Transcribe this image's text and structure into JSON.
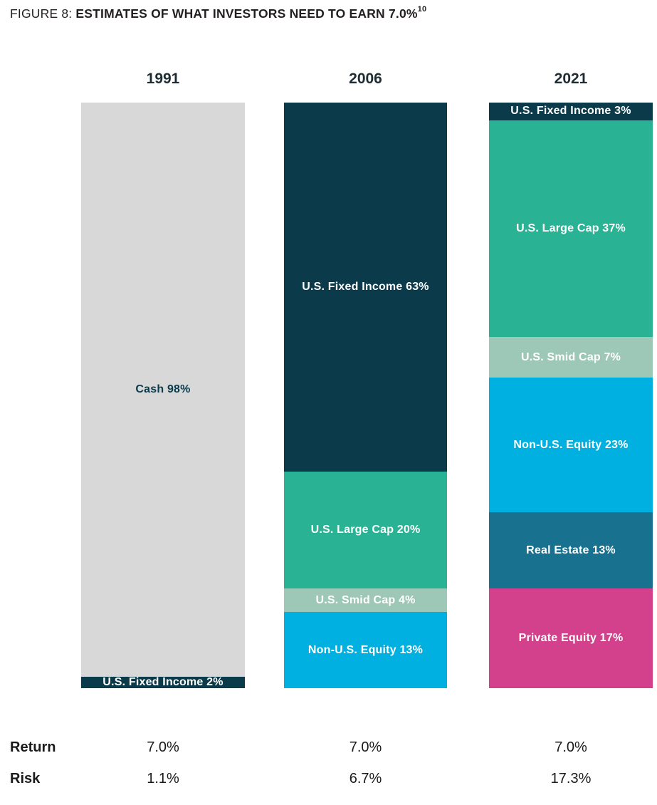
{
  "figure": {
    "prefix": "FIGURE 8:",
    "heading": "ESTIMATES OF WHAT INVESTORS NEED TO EARN 7.0%",
    "footnote_ref": "10"
  },
  "palette": {
    "navy": "#0b3a4b",
    "teal": "#2ab294",
    "sage": "#9dc8b7",
    "cyan": "#00b0e1",
    "steel": "#17718f",
    "magenta": "#d3418d",
    "gray": "#d8d8d8",
    "white": "#ffffff",
    "text_dark": "#231f20"
  },
  "chart_data": {
    "type": "bar",
    "subtype": "stacked-percentage-columns",
    "title": "FIGURE 8: ESTIMATES OF WHAT INVESTORS NEED TO EARN 7.0%",
    "unit": "%",
    "ylim": [
      0,
      100
    ],
    "grid": false,
    "legend_position": "none-labels-inline",
    "categories": [
      "1991",
      "2006",
      "2021"
    ],
    "columns": [
      {
        "year": "1991",
        "segments": [
          {
            "name": "Cash",
            "label": "Cash 98%",
            "value": 98,
            "color": "#d8d8d8",
            "text_color": "#0b3a4b"
          },
          {
            "name": "U.S. Fixed Income",
            "label": "U.S. Fixed Income 2%",
            "value": 2,
            "color": "#0b3a4b",
            "text_color": "#ffffff"
          }
        ]
      },
      {
        "year": "2006",
        "segments": [
          {
            "name": "U.S. Fixed Income",
            "label": "U.S. Fixed Income 63%",
            "value": 63,
            "color": "#0b3a4b",
            "text_color": "#ffffff"
          },
          {
            "name": "U.S. Large Cap",
            "label": "U.S. Large Cap 20%",
            "value": 20,
            "color": "#2ab294",
            "text_color": "#ffffff"
          },
          {
            "name": "U.S. Smid Cap",
            "label": "U.S. Smid Cap 4%",
            "value": 4,
            "color": "#9dc8b7",
            "text_color": "#ffffff"
          },
          {
            "name": "Non-U.S. Equity",
            "label": "Non-U.S. Equity 13%",
            "value": 13,
            "color": "#00b0e1",
            "text_color": "#ffffff"
          }
        ]
      },
      {
        "year": "2021",
        "segments": [
          {
            "name": "U.S. Fixed Income",
            "label": "U.S. Fixed Income 3%",
            "value": 3,
            "color": "#0b3a4b",
            "text_color": "#ffffff"
          },
          {
            "name": "U.S. Large Cap",
            "label": "U.S. Large Cap 37%",
            "value": 37,
            "color": "#2ab294",
            "text_color": "#ffffff"
          },
          {
            "name": "U.S. Smid Cap",
            "label": "U.S. Smid Cap 7%",
            "value": 7,
            "color": "#9dc8b7",
            "text_color": "#ffffff"
          },
          {
            "name": "Non-U.S. Equity",
            "label": "Non-U.S. Equity 23%",
            "value": 23,
            "color": "#00b0e1",
            "text_color": "#ffffff"
          },
          {
            "name": "Real Estate",
            "label": "Real Estate 13%",
            "value": 13,
            "color": "#17718f",
            "text_color": "#ffffff"
          },
          {
            "name": "Private Equity",
            "label": "Private Equity 17%",
            "value": 17,
            "color": "#d3418d",
            "text_color": "#ffffff"
          }
        ]
      }
    ],
    "stats_rows": [
      {
        "label": "Return",
        "values": [
          "7.0%",
          "7.0%",
          "7.0%"
        ]
      },
      {
        "label": "Risk",
        "values": [
          "1.1%",
          "6.7%",
          "17.3%"
        ]
      }
    ]
  }
}
